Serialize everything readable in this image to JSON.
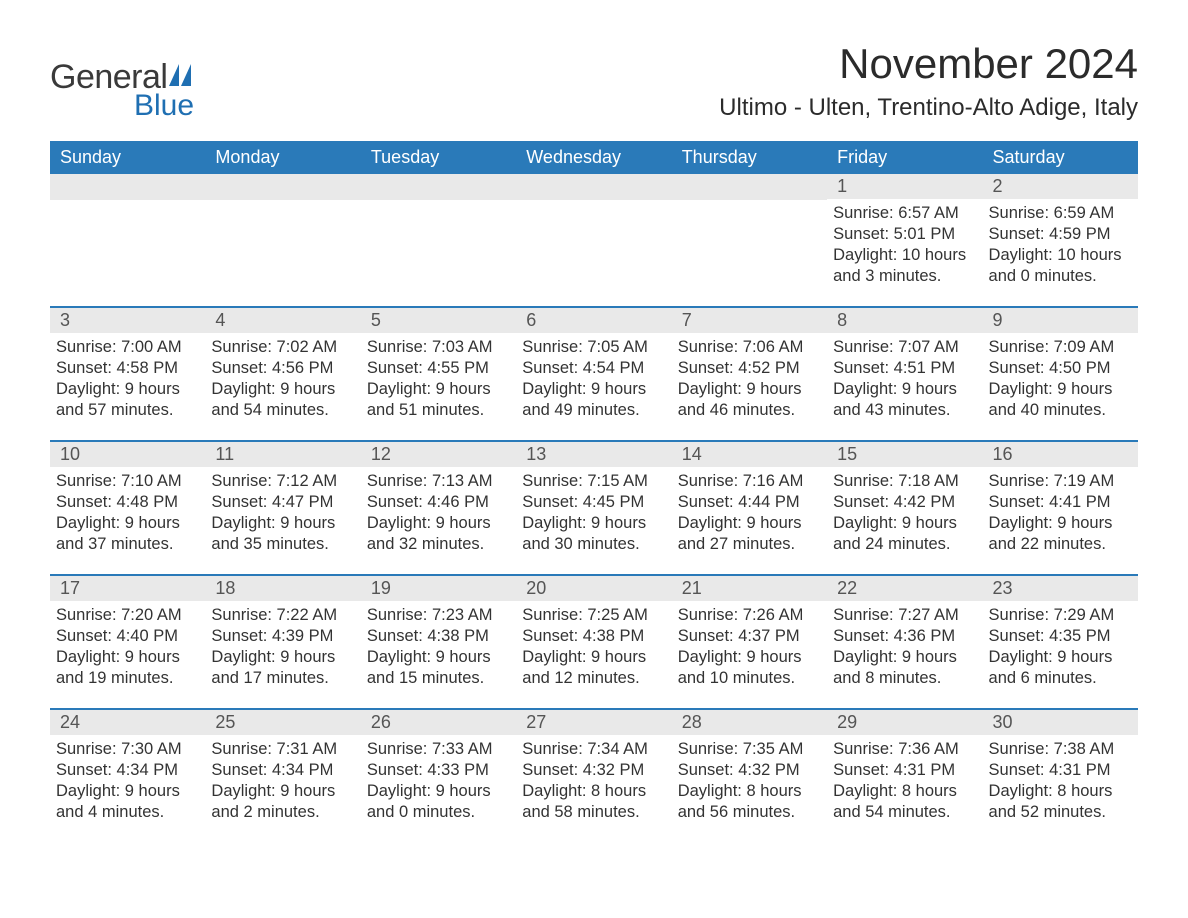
{
  "logo": {
    "text1": "General",
    "text2": "Blue"
  },
  "title": "November 2024",
  "location": "Ultimo - Ulten, Trentino-Alto Adige, Italy",
  "colors": {
    "header_bg": "#2a7ab9",
    "header_text": "#ffffff",
    "daynum_bg": "#e9e9e9",
    "daynum_text": "#555555",
    "body_text": "#333333",
    "rule": "#2a7ab9",
    "logo_gray": "#3a3a3a",
    "logo_blue": "#1f6fb2",
    "page_bg": "#ffffff"
  },
  "fonts": {
    "title_size_pt": 32,
    "location_size_pt": 18,
    "weekday_size_pt": 14,
    "daynum_size_pt": 14,
    "body_size_pt": 12
  },
  "weekdays": [
    "Sunday",
    "Monday",
    "Tuesday",
    "Wednesday",
    "Thursday",
    "Friday",
    "Saturday"
  ],
  "weeks": [
    [
      null,
      null,
      null,
      null,
      null,
      {
        "n": "1",
        "sunrise": "6:57 AM",
        "sunset": "5:01 PM",
        "daylight": "10 hours and 3 minutes."
      },
      {
        "n": "2",
        "sunrise": "6:59 AM",
        "sunset": "4:59 PM",
        "daylight": "10 hours and 0 minutes."
      }
    ],
    [
      {
        "n": "3",
        "sunrise": "7:00 AM",
        "sunset": "4:58 PM",
        "daylight": "9 hours and 57 minutes."
      },
      {
        "n": "4",
        "sunrise": "7:02 AM",
        "sunset": "4:56 PM",
        "daylight": "9 hours and 54 minutes."
      },
      {
        "n": "5",
        "sunrise": "7:03 AM",
        "sunset": "4:55 PM",
        "daylight": "9 hours and 51 minutes."
      },
      {
        "n": "6",
        "sunrise": "7:05 AM",
        "sunset": "4:54 PM",
        "daylight": "9 hours and 49 minutes."
      },
      {
        "n": "7",
        "sunrise": "7:06 AM",
        "sunset": "4:52 PM",
        "daylight": "9 hours and 46 minutes."
      },
      {
        "n": "8",
        "sunrise": "7:07 AM",
        "sunset": "4:51 PM",
        "daylight": "9 hours and 43 minutes."
      },
      {
        "n": "9",
        "sunrise": "7:09 AM",
        "sunset": "4:50 PM",
        "daylight": "9 hours and 40 minutes."
      }
    ],
    [
      {
        "n": "10",
        "sunrise": "7:10 AM",
        "sunset": "4:48 PM",
        "daylight": "9 hours and 37 minutes."
      },
      {
        "n": "11",
        "sunrise": "7:12 AM",
        "sunset": "4:47 PM",
        "daylight": "9 hours and 35 minutes."
      },
      {
        "n": "12",
        "sunrise": "7:13 AM",
        "sunset": "4:46 PM",
        "daylight": "9 hours and 32 minutes."
      },
      {
        "n": "13",
        "sunrise": "7:15 AM",
        "sunset": "4:45 PM",
        "daylight": "9 hours and 30 minutes."
      },
      {
        "n": "14",
        "sunrise": "7:16 AM",
        "sunset": "4:44 PM",
        "daylight": "9 hours and 27 minutes."
      },
      {
        "n": "15",
        "sunrise": "7:18 AM",
        "sunset": "4:42 PM",
        "daylight": "9 hours and 24 minutes."
      },
      {
        "n": "16",
        "sunrise": "7:19 AM",
        "sunset": "4:41 PM",
        "daylight": "9 hours and 22 minutes."
      }
    ],
    [
      {
        "n": "17",
        "sunrise": "7:20 AM",
        "sunset": "4:40 PM",
        "daylight": "9 hours and 19 minutes."
      },
      {
        "n": "18",
        "sunrise": "7:22 AM",
        "sunset": "4:39 PM",
        "daylight": "9 hours and 17 minutes."
      },
      {
        "n": "19",
        "sunrise": "7:23 AM",
        "sunset": "4:38 PM",
        "daylight": "9 hours and 15 minutes."
      },
      {
        "n": "20",
        "sunrise": "7:25 AM",
        "sunset": "4:38 PM",
        "daylight": "9 hours and 12 minutes."
      },
      {
        "n": "21",
        "sunrise": "7:26 AM",
        "sunset": "4:37 PM",
        "daylight": "9 hours and 10 minutes."
      },
      {
        "n": "22",
        "sunrise": "7:27 AM",
        "sunset": "4:36 PM",
        "daylight": "9 hours and 8 minutes."
      },
      {
        "n": "23",
        "sunrise": "7:29 AM",
        "sunset": "4:35 PM",
        "daylight": "9 hours and 6 minutes."
      }
    ],
    [
      {
        "n": "24",
        "sunrise": "7:30 AM",
        "sunset": "4:34 PM",
        "daylight": "9 hours and 4 minutes."
      },
      {
        "n": "25",
        "sunrise": "7:31 AM",
        "sunset": "4:34 PM",
        "daylight": "9 hours and 2 minutes."
      },
      {
        "n": "26",
        "sunrise": "7:33 AM",
        "sunset": "4:33 PM",
        "daylight": "9 hours and 0 minutes."
      },
      {
        "n": "27",
        "sunrise": "7:34 AM",
        "sunset": "4:32 PM",
        "daylight": "8 hours and 58 minutes."
      },
      {
        "n": "28",
        "sunrise": "7:35 AM",
        "sunset": "4:32 PM",
        "daylight": "8 hours and 56 minutes."
      },
      {
        "n": "29",
        "sunrise": "7:36 AM",
        "sunset": "4:31 PM",
        "daylight": "8 hours and 54 minutes."
      },
      {
        "n": "30",
        "sunrise": "7:38 AM",
        "sunset": "4:31 PM",
        "daylight": "8 hours and 52 minutes."
      }
    ]
  ],
  "labels": {
    "sunrise": "Sunrise:",
    "sunset": "Sunset:",
    "daylight": "Daylight:"
  }
}
